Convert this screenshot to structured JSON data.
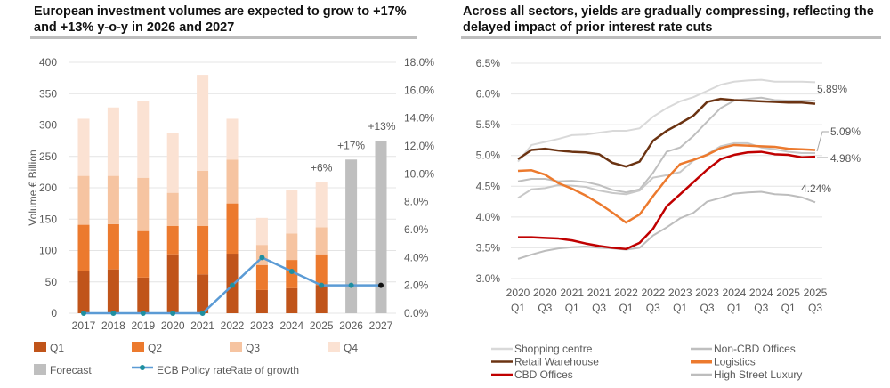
{
  "chart_data": [
    {
      "type": "bar",
      "stacked": true,
      "title": "European investment volumes are expected to grow to +17% and +13% y-o-y in 2026 and 2027",
      "ylabel": "Volume € Billion",
      "ylim": [
        0,
        400
      ],
      "yticks": [
        "0",
        "50",
        "100",
        "150",
        "200",
        "250",
        "300",
        "350",
        "400"
      ],
      "y2lim": [
        0,
        18
      ],
      "y2ticks": [
        "0.0%",
        "2.0%",
        "4.0%",
        "6.0%",
        "8.0%",
        "10.0%",
        "12.0%",
        "14.0%",
        "16.0%",
        "18.0%"
      ],
      "categories": [
        "2017",
        "2018",
        "2019",
        "2020",
        "2021",
        "2022",
        "2023",
        "2024",
        "2025",
        "2026",
        "2027"
      ],
      "series": [
        {
          "name": "Q1",
          "color": "#c0541a",
          "values": [
            68,
            70,
            57,
            94,
            62,
            95,
            37,
            40,
            45,
            null,
            null
          ]
        },
        {
          "name": "Q2",
          "color": "#ec7a2e",
          "values": [
            73,
            72,
            74,
            45,
            77,
            80,
            40,
            45,
            49,
            null,
            null
          ]
        },
        {
          "name": "Q3",
          "color": "#f6c4a1",
          "values": [
            78,
            77,
            85,
            53,
            88,
            70,
            32,
            42,
            43,
            null,
            null
          ]
        },
        {
          "name": "Q4",
          "color": "#fbe2d3",
          "values": [
            91,
            109,
            122,
            95,
            153,
            65,
            43,
            70,
            72,
            null,
            null
          ]
        },
        {
          "name": "Forecast",
          "color": "#bfbfbf",
          "values": [
            null,
            null,
            null,
            null,
            null,
            null,
            null,
            null,
            null,
            245,
            275
          ]
        }
      ],
      "line_series": {
        "name": "ECB Policy rate",
        "color": "#5b9bd5",
        "marker_color": "#1f8fa0",
        "axis": "right",
        "values": [
          0,
          0,
          0,
          0,
          0,
          2,
          4,
          3,
          2,
          2,
          2
        ]
      },
      "annotations": [
        {
          "category": "2025",
          "text": "+6%"
        },
        {
          "category": "2026",
          "text": "+17%"
        },
        {
          "category": "2027",
          "text": "+13%"
        }
      ],
      "legend_extra": "Rate of growth",
      "grid": true,
      "legend": "bottom"
    },
    {
      "type": "line",
      "title": "Across all sectors, yields are gradually compressing, reflecting the delayed impact of prior interest rate cuts",
      "ylim": [
        3.0,
        6.5
      ],
      "yticks": [
        "3.0%",
        "3.5%",
        "4.0%",
        "4.5%",
        "5.0%",
        "5.5%",
        "6.0%",
        "6.5%"
      ],
      "x": [
        "2020 Q1",
        "2020 Q2",
        "2020 Q3",
        "2020 Q4",
        "2021 Q1",
        "2021 Q2",
        "2021 Q3",
        "2021 Q4",
        "2022 Q1",
        "2022 Q2",
        "2022 Q3",
        "2022 Q4",
        "2023 Q1",
        "2023 Q2",
        "2023 Q3",
        "2023 Q4",
        "2024 Q1",
        "2024 Q2",
        "2024 Q3",
        "2024 Q4",
        "2025 Q1",
        "2025 Q2",
        "2025 Q3"
      ],
      "xtick_labels": [
        [
          "2020",
          "Q1"
        ],
        [
          "2020",
          "Q3"
        ],
        [
          "2021",
          "Q1"
        ],
        [
          "2021",
          "Q3"
        ],
        [
          "2022",
          "Q1"
        ],
        [
          "2022",
          "Q3"
        ],
        [
          "2023",
          "Q1"
        ],
        [
          "2023",
          "Q3"
        ],
        [
          "2024",
          "Q1"
        ],
        [
          "2024",
          "Q3"
        ],
        [
          "2025",
          "Q1"
        ],
        [
          "2025",
          "Q3"
        ]
      ],
      "series": [
        {
          "name": "Shopping centre",
          "color": "#d9d9d9",
          "values": [
            4.9,
            5.17,
            5.22,
            5.27,
            5.33,
            5.34,
            5.37,
            5.4,
            5.4,
            5.44,
            5.63,
            5.77,
            5.88,
            5.95,
            6.05,
            6.15,
            6.2,
            6.22,
            6.23,
            6.2,
            6.2,
            6.2,
            6.19
          ]
        },
        {
          "name": "Non-CBD Offices",
          "color": "#bfbfbf",
          "values": [
            4.58,
            4.62,
            4.62,
            4.58,
            4.59,
            4.57,
            4.52,
            4.44,
            4.4,
            4.45,
            4.72,
            5.06,
            5.13,
            5.32,
            5.55,
            5.77,
            5.89,
            5.92,
            5.94,
            5.9,
            5.89,
            5.89,
            5.89
          ]
        },
        {
          "name": "",
          "color": "#c8c8c8",
          "values": [
            4.31,
            4.45,
            4.47,
            4.52,
            4.51,
            4.49,
            4.43,
            4.39,
            4.37,
            4.43,
            4.64,
            4.68,
            4.73,
            4.92,
            5.02,
            5.15,
            5.2,
            5.2,
            5.13,
            5.1,
            5.06,
            5.04,
            5.04
          ]
        },
        {
          "name": "High Street Luxury",
          "color": "#bdbdbd",
          "values": [
            3.32,
            3.39,
            3.45,
            3.49,
            3.51,
            3.52,
            3.5,
            3.49,
            3.47,
            3.5,
            3.7,
            3.83,
            3.98,
            4.07,
            4.25,
            4.31,
            4.38,
            4.4,
            4.41,
            4.37,
            4.36,
            4.32,
            4.24
          ]
        },
        {
          "name": "Retail Warehouse",
          "color": "#6b3312",
          "values": [
            4.94,
            5.09,
            5.11,
            5.08,
            5.06,
            5.05,
            5.02,
            4.88,
            4.82,
            4.9,
            5.24,
            5.4,
            5.52,
            5.65,
            5.87,
            5.92,
            5.9,
            5.89,
            5.88,
            5.87,
            5.86,
            5.86,
            5.84
          ]
        },
        {
          "name": "Logistics",
          "color": "#ec7a2e",
          "values": [
            4.75,
            4.76,
            4.69,
            4.55,
            4.46,
            4.35,
            4.22,
            4.07,
            3.91,
            4.04,
            4.34,
            4.62,
            4.86,
            4.93,
            5.01,
            5.12,
            5.17,
            5.16,
            5.15,
            5.14,
            5.11,
            5.1,
            5.09
          ]
        },
        {
          "name": "CBD Offices",
          "color": "#c00000",
          "values": [
            3.67,
            3.67,
            3.66,
            3.65,
            3.62,
            3.57,
            3.53,
            3.5,
            3.48,
            3.58,
            3.81,
            4.17,
            4.37,
            4.57,
            4.77,
            4.94,
            5.01,
            5.05,
            5.06,
            5.02,
            5.01,
            4.97,
            4.98
          ]
        }
      ],
      "annotations": [
        "5.89%",
        "5.09%",
        "4.98%",
        "4.24%"
      ],
      "legend_order": [
        "Shopping centre",
        "Non-CBD Offices",
        "Retail Warehouse",
        "Logistics",
        "CBD Offices",
        "High Street Luxury"
      ],
      "grid": true,
      "legend": "bottom"
    }
  ]
}
